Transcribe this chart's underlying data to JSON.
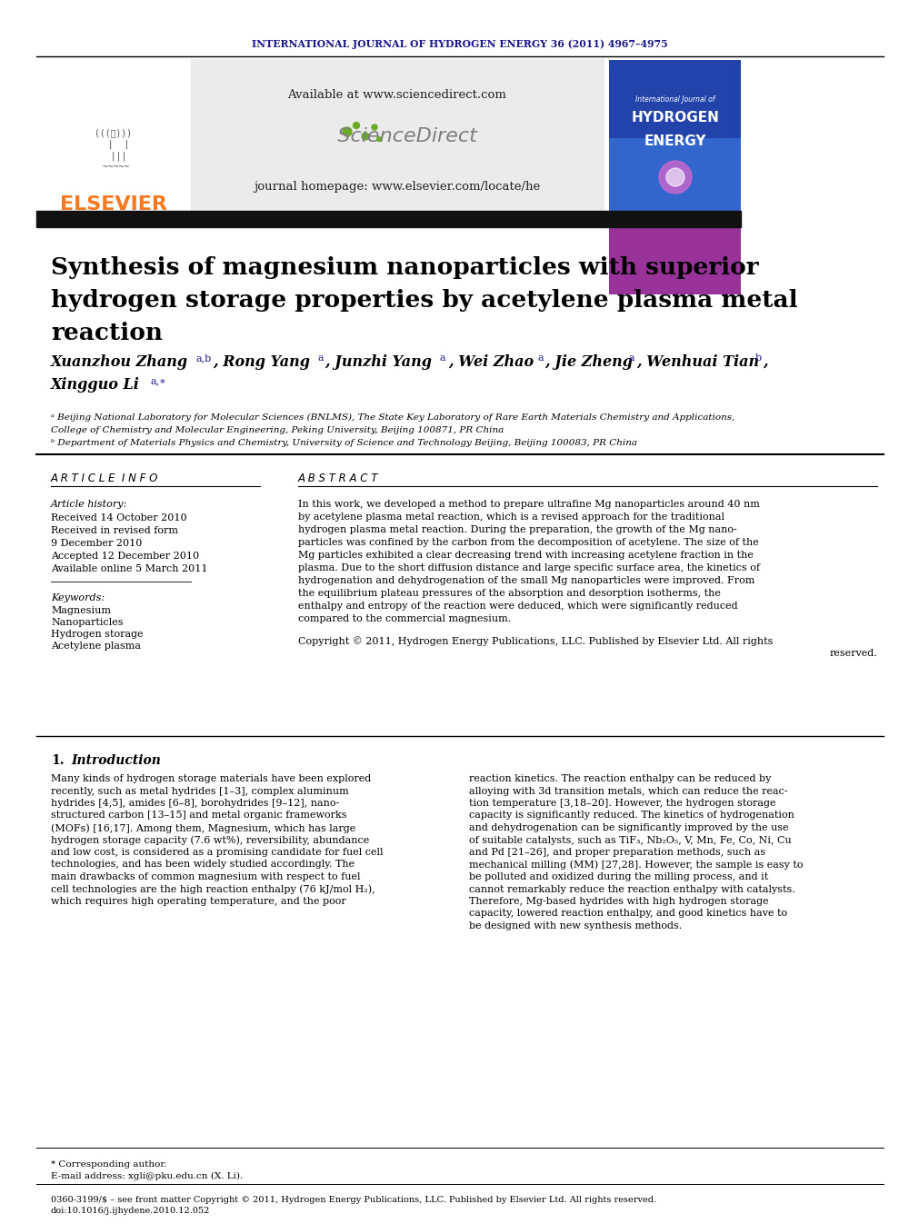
{
  "journal_header": "INTERNATIONAL JOURNAL OF HYDROGEN ENERGY 36 (2011) 4967–4975",
  "journal_header_color": "#1a1a8c",
  "available_text": "Available at www.sciencedirect.com",
  "sciencedirect_text": "ScienceDirect",
  "journal_homepage": "journal homepage: www.elsevier.com/locate/he",
  "elsevier_text": "ELSEVIER",
  "elsevier_color": "#f47920",
  "title_line1": "Synthesis of magnesium nanoparticles with superior",
  "title_line2": "hydrogen storage properties by acetylene plasma metal",
  "title_line3": "reaction",
  "article_info_title": "ARTICLE INFO",
  "article_history_title": "Article history:",
  "received1": "Received 14 October 2010",
  "received_revised_label": "Received in revised form",
  "received_revised_date": "9 December 2010",
  "accepted": "Accepted 12 December 2010",
  "online": "Available online 5 March 2011",
  "keywords_title": "Keywords:",
  "keywords": [
    "Magnesium",
    "Nanoparticles",
    "Hydrogen storage",
    "Acetylene plasma"
  ],
  "abstract_title": "ABSTRACT",
  "abstract_lines": [
    "In this work, we developed a method to prepare ultrafine Mg nanoparticles around 40 nm",
    "by acetylene plasma metal reaction, which is a revised approach for the traditional",
    "hydrogen plasma metal reaction. During the preparation, the growth of the Mg nano-",
    "particles was confined by the carbon from the decomposition of acetylene. The size of the",
    "Mg particles exhibited a clear decreasing trend with increasing acetylene fraction in the",
    "plasma. Due to the short diffusion distance and large specific surface area, the kinetics of",
    "hydrogenation and dehydrogenation of the small Mg nanoparticles were improved. From",
    "the equilibrium plateau pressures of the absorption and desorption isotherms, the",
    "enthalpy and entropy of the reaction were deduced, which were significantly reduced",
    "compared to the commercial magnesium."
  ],
  "copyright_line1": "Copyright © 2011, Hydrogen Energy Publications, LLC. Published by Elsevier Ltd. All rights",
  "copyright_line2": "reserved.",
  "intro_number": "1.",
  "intro_title": "Introduction",
  "intro_left_lines": [
    "Many kinds of hydrogen storage materials have been explored",
    "recently, such as metal hydrides [1–3], complex aluminum",
    "hydrides [4,5], amides [6–8], borohydrides [9–12], nano-",
    "structured carbon [13–15] and metal organic frameworks",
    "(MOFs) [16,17]. Among them, Magnesium, which has large",
    "hydrogen storage capacity (7.6 wt%), reversibility, abundance",
    "and low cost, is considered as a promising candidate for fuel cell",
    "technologies, and has been widely studied accordingly. The",
    "main drawbacks of common magnesium with respect to fuel",
    "cell technologies are the high reaction enthalpy (76 kJ/mol H₂),",
    "which requires high operating temperature, and the poor"
  ],
  "intro_right_lines": [
    "reaction kinetics. The reaction enthalpy can be reduced by",
    "alloying with 3d transition metals, which can reduce the reac-",
    "tion temperature [3,18–20]. However, the hydrogen storage",
    "capacity is significantly reduced. The kinetics of hydrogenation",
    "and dehydrogenation can be significantly improved by the use",
    "of suitable catalysts, such as TiF₃, Nb₂O₅, V, Mn, Fe, Co, Ni, Cu",
    "and Pd [21–26], and proper preparation methods, such as",
    "mechanical milling (MM) [27,28]. However, the sample is easy to",
    "be polluted and oxidized during the milling process, and it",
    "cannot remarkably reduce the reaction enthalpy with catalysts.",
    "Therefore, Mg-based hydrides with high hydrogen storage",
    "capacity, lowered reaction enthalpy, and good kinetics have to",
    "be designed with new synthesis methods."
  ],
  "footnote_star": "* Corresponding author.",
  "footnote_email": "E-mail address: xgli@pku.edu.cn (X. Li).",
  "footnote_issn": "0360-3199/$ – see front matter Copyright © 2011, Hydrogen Energy Publications, LLC. Published by Elsevier Ltd. All rights reserved.",
  "footnote_doi": "doi:10.1016/j.ijhydene.2010.12.052",
  "bg_color": "#ffffff"
}
